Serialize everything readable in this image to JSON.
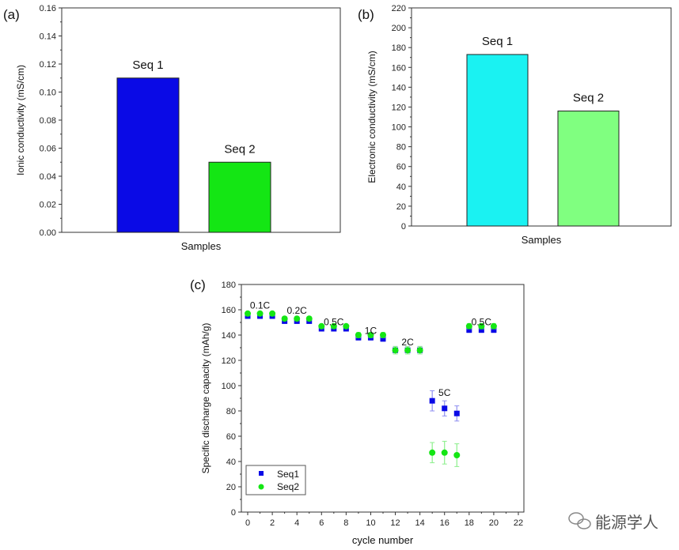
{
  "chart_data": [
    {
      "type": "bar",
      "panel_label": "(a)",
      "categories": [
        "Seq 1",
        "Seq 2"
      ],
      "values": [
        0.11,
        0.05
      ],
      "colors": [
        "#0a0ae6",
        "#14e614"
      ],
      "xlabel": "Samples",
      "ylabel": "Ionic conductivity (mS/cm)",
      "ylim": [
        0,
        0.16
      ],
      "yticks": [
        "0.00",
        "0.02",
        "0.04",
        "0.06",
        "0.08",
        "0.10",
        "0.12",
        "0.14",
        "0.16"
      ],
      "grid": false
    },
    {
      "type": "bar",
      "panel_label": "(b)",
      "categories": [
        "Seq 1",
        "Seq 2"
      ],
      "values": [
        173,
        116
      ],
      "colors": [
        "#1af2f2",
        "#80ff80"
      ],
      "xlabel": "Samples",
      "ylabel": "Electronic conductivity (mS/cm)",
      "ylim": [
        0,
        220
      ],
      "yticks": [
        "0",
        "20",
        "40",
        "60",
        "80",
        "100",
        "120",
        "140",
        "160",
        "180",
        "200",
        "220"
      ],
      "grid": false
    },
    {
      "type": "scatter",
      "panel_label": "(c)",
      "xlabel": "cycle number",
      "ylabel": "Specific discharge capacity (mAh/g)",
      "xlim": [
        0,
        22
      ],
      "ylim": [
        0,
        180
      ],
      "xticks": [
        "0",
        "2",
        "4",
        "6",
        "8",
        "10",
        "12",
        "14",
        "16",
        "18",
        "20",
        "22"
      ],
      "yticks": [
        "0",
        "20",
        "40",
        "60",
        "80",
        "100",
        "120",
        "140",
        "160",
        "180"
      ],
      "x": [
        0,
        1,
        2,
        3,
        4,
        5,
        6,
        7,
        8,
        9,
        10,
        11,
        12,
        13,
        14,
        15,
        16,
        17,
        18,
        19,
        20
      ],
      "series": [
        {
          "name": "Seq1",
          "color": "#0a0ae6",
          "marker": "square",
          "values": [
            155,
            155,
            155,
            151,
            151,
            151,
            145,
            145,
            145,
            138,
            138,
            137,
            128,
            128,
            128,
            88,
            82,
            78,
            144,
            144,
            144
          ],
          "errors": [
            1.5,
            1.5,
            1.5,
            1.5,
            1.5,
            1.5,
            1.5,
            1.5,
            1.5,
            2,
            2,
            2,
            3,
            3,
            3,
            8,
            6,
            6,
            2,
            2,
            2
          ]
        },
        {
          "name": "Seq2",
          "color": "#14e614",
          "marker": "circle",
          "values": [
            157,
            157,
            157,
            153,
            153,
            153,
            147,
            147,
            147,
            140,
            140,
            140,
            128,
            128,
            128,
            47,
            47,
            45,
            147,
            147,
            147
          ],
          "errors": [
            1.5,
            1.5,
            1.5,
            1.5,
            1.5,
            1.5,
            1.5,
            1.5,
            1.5,
            2,
            2,
            2,
            3,
            3,
            3,
            8,
            9,
            9,
            2,
            2,
            2
          ]
        }
      ],
      "annotations": [
        "0.1C",
        "0.2C",
        "0.5C",
        "1C",
        "2C",
        "5C",
        "0.5C"
      ],
      "legend": "bottom-left"
    }
  ],
  "watermark": "能源学人"
}
